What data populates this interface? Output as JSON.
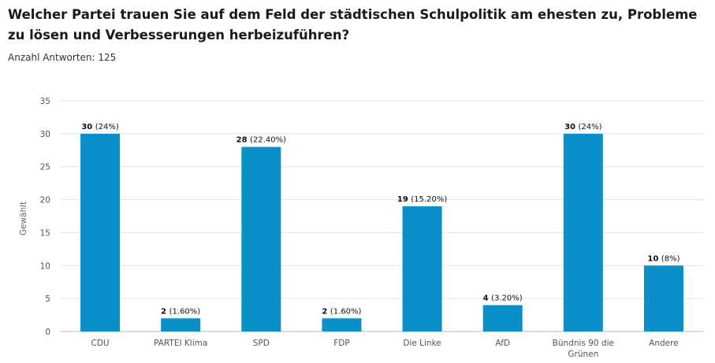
{
  "header": {
    "title": "Welcher Partei trauen Sie auf dem Feld der städtischen Schulpolitik am ehesten zu, Probleme zu lösen und Verbesserungen herbeizuführen?",
    "subtitle": "Anzahl Antworten: 125"
  },
  "colors": {
    "bar": "#0a8fc8",
    "grid": "#e3e3e3",
    "axis": "#bdbdbd"
  },
  "chart_data": {
    "type": "bar",
    "ylabel": "Gewählt",
    "xlabel": "",
    "ylim": [
      0,
      35
    ],
    "yticks": [
      0,
      5,
      10,
      15,
      20,
      25,
      30,
      35
    ],
    "grid": true,
    "categories": [
      [
        "CDU"
      ],
      [
        "PARTEI Klima"
      ],
      [
        "SPD"
      ],
      [
        "FDP"
      ],
      [
        "Die Linke"
      ],
      [
        "AfD"
      ],
      [
        "Bündnis 90 die",
        "Grünen"
      ],
      [
        "Andere"
      ]
    ],
    "values": [
      30,
      2,
      28,
      2,
      19,
      4,
      30,
      10
    ],
    "percent_labels": [
      "(24%)",
      "(1.60%)",
      "(22.40%)",
      "(1.60%)",
      "(15.20%)",
      "(3.20%)",
      "(24%)",
      "(8%)"
    ]
  }
}
